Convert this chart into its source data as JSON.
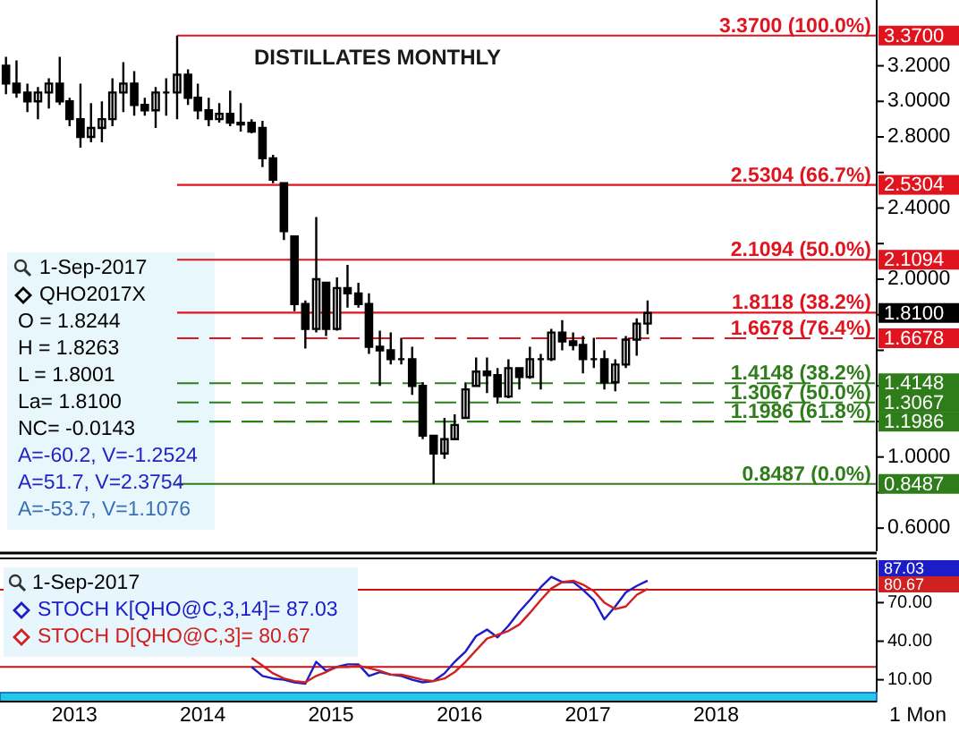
{
  "chart_data": [
    {
      "type": "candlestick",
      "title": "DISTILLATES MONTHLY",
      "color": "#000000",
      "x": [
        "2012-09",
        "2012-10",
        "2012-11",
        "2012-12",
        "2013-01",
        "2013-02",
        "2013-03",
        "2013-04",
        "2013-05",
        "2013-06",
        "2013-07",
        "2013-08",
        "2013-09",
        "2013-10",
        "2013-11",
        "2013-12",
        "2014-01",
        "2014-02",
        "2014-03",
        "2014-04",
        "2014-05",
        "2014-06",
        "2014-07",
        "2014-08",
        "2014-09",
        "2014-10",
        "2014-11",
        "2014-12",
        "2015-01",
        "2015-02",
        "2015-03",
        "2015-04",
        "2015-05",
        "2015-06",
        "2015-07",
        "2015-08",
        "2015-09",
        "2015-10",
        "2015-11",
        "2015-12",
        "2016-01",
        "2016-02",
        "2016-03",
        "2016-04",
        "2016-05",
        "2016-06",
        "2016-07",
        "2016-08",
        "2016-09",
        "2016-10",
        "2016-11",
        "2016-12",
        "2017-01",
        "2017-02",
        "2017-03",
        "2017-04",
        "2017-05",
        "2017-06",
        "2017-07",
        "2017-08",
        "2017-09"
      ],
      "ohlc": [
        [
          3.2,
          3.25,
          3.04,
          3.1
        ],
        [
          3.1,
          3.23,
          3.02,
          3.05
        ],
        [
          3.05,
          3.1,
          2.94,
          3.0
        ],
        [
          3.0,
          3.08,
          2.9,
          3.05
        ],
        [
          3.05,
          3.13,
          2.96,
          3.1
        ],
        [
          3.1,
          3.25,
          2.98,
          3.0
        ],
        [
          3.0,
          3.02,
          2.86,
          2.9
        ],
        [
          2.9,
          3.1,
          2.74,
          2.8
        ],
        [
          2.8,
          2.99,
          2.77,
          2.85
        ],
        [
          2.85,
          3.0,
          2.77,
          2.9
        ],
        [
          2.9,
          3.13,
          2.86,
          3.05
        ],
        [
          3.05,
          3.22,
          2.94,
          3.1
        ],
        [
          3.1,
          3.17,
          2.92,
          2.98
        ],
        [
          2.98,
          3.02,
          2.92,
          2.95
        ],
        [
          2.95,
          3.08,
          2.85,
          3.05
        ],
        [
          3.05,
          3.13,
          2.92,
          3.05
        ],
        [
          3.05,
          3.37,
          2.9,
          3.15
        ],
        [
          3.15,
          3.18,
          2.98,
          3.02
        ],
        [
          3.02,
          3.1,
          2.9,
          2.95
        ],
        [
          2.95,
          3.02,
          2.86,
          2.9
        ],
        [
          2.9,
          2.99,
          2.88,
          2.93
        ],
        [
          2.93,
          3.06,
          2.86,
          2.88
        ],
        [
          2.88,
          2.99,
          2.83,
          2.87
        ],
        [
          2.88,
          2.9,
          2.82,
          2.83
        ],
        [
          2.85,
          2.89,
          2.63,
          2.68
        ],
        [
          2.68,
          2.7,
          2.54,
          2.56
        ],
        [
          2.54,
          2.54,
          2.22,
          2.27
        ],
        [
          2.24,
          2.24,
          1.82,
          1.86
        ],
        [
          1.86,
          1.88,
          1.61,
          1.72
        ],
        [
          1.72,
          2.35,
          1.7,
          2.0
        ],
        [
          1.98,
          1.98,
          1.68,
          1.72
        ],
        [
          1.72,
          2.01,
          1.71,
          1.95
        ],
        [
          1.95,
          2.08,
          1.84,
          1.92
        ],
        [
          1.92,
          1.98,
          1.84,
          1.86
        ],
        [
          1.86,
          1.92,
          1.58,
          1.62
        ],
        [
          1.62,
          1.71,
          1.4,
          1.6
        ],
        [
          1.6,
          1.7,
          1.52,
          1.55
        ],
        [
          1.55,
          1.67,
          1.52,
          1.55
        ],
        [
          1.55,
          1.62,
          1.35,
          1.4
        ],
        [
          1.4,
          1.42,
          1.1,
          1.12
        ],
        [
          1.12,
          1.12,
          0.8487,
          1.02
        ],
        [
          1.02,
          1.22,
          0.99,
          1.1
        ],
        [
          1.1,
          1.24,
          1.1,
          1.18
        ],
        [
          1.22,
          1.42,
          1.22,
          1.38
        ],
        [
          1.4,
          1.56,
          1.4,
          1.48
        ],
        [
          1.48,
          1.56,
          1.36,
          1.46
        ],
        [
          1.46,
          1.5,
          1.3,
          1.34
        ],
        [
          1.34,
          1.55,
          1.33,
          1.5
        ],
        [
          1.5,
          1.5,
          1.38,
          1.45
        ],
        [
          1.45,
          1.62,
          1.44,
          1.55
        ],
        [
          1.55,
          1.58,
          1.38,
          1.55
        ],
        [
          1.55,
          1.72,
          1.54,
          1.7
        ],
        [
          1.7,
          1.77,
          1.6,
          1.65
        ],
        [
          1.65,
          1.7,
          1.6,
          1.63
        ],
        [
          1.63,
          1.68,
          1.47,
          1.55
        ],
        [
          1.55,
          1.67,
          1.5,
          1.55
        ],
        [
          1.55,
          1.6,
          1.38,
          1.42
        ],
        [
          1.42,
          1.55,
          1.37,
          1.52
        ],
        [
          1.52,
          1.68,
          1.5,
          1.66
        ],
        [
          1.66,
          1.78,
          1.57,
          1.75
        ],
        [
          1.75,
          1.88,
          1.69,
          1.81
        ]
      ],
      "xlim": [
        "2012-08-15",
        "2019-06-15"
      ],
      "ylim": [
        0.47,
        3.57
      ],
      "yticks": [
        {
          "value": 0.6,
          "label": "0.6000"
        },
        {
          "value": 0.8,
          "label": null
        },
        {
          "value": 1.0,
          "label": "1.0000"
        },
        {
          "value": 1.2,
          "label": null
        },
        {
          "value": 1.4,
          "label": null
        },
        {
          "value": 1.6,
          "label": null
        },
        {
          "value": 1.8,
          "label": null
        },
        {
          "value": 2.0,
          "label": "2.0000"
        },
        {
          "value": 2.2,
          "label": null
        },
        {
          "value": 2.4,
          "label": "2.4000"
        },
        {
          "value": 2.6,
          "label": null
        },
        {
          "value": 2.8,
          "label": "2.8000"
        },
        {
          "value": 3.0,
          "label": "3.0000"
        },
        {
          "value": 3.2,
          "label": "3.2000"
        }
      ],
      "tick_labels": "y",
      "ref_lines": [
        {
          "axis": "y",
          "value": 3.37,
          "label": "3.3700 (100.0%)",
          "color": "#e0141e",
          "line_style": "solid"
        },
        {
          "axis": "y",
          "value": 2.5304,
          "label": "2.5304 (66.7%)",
          "color": "#e0141e",
          "line_style": "solid"
        },
        {
          "axis": "y",
          "value": 2.1094,
          "label": "2.1094 (50.0%)",
          "color": "#e0141e",
          "line_style": "solid"
        },
        {
          "axis": "y",
          "value": 1.8118,
          "label": "1.8118 (38.2%)",
          "color": "#e0141e",
          "line_style": "solid"
        },
        {
          "axis": "y",
          "value": 1.6678,
          "label": "1.6678 (76.4%)",
          "color": "#e0141e",
          "line_style": "dashed"
        },
        {
          "axis": "y",
          "value": 1.4148,
          "label": "1.4148 (38.2%)",
          "color": "#2e7d1a",
          "line_style": "dashed"
        },
        {
          "axis": "y",
          "value": 1.3067,
          "label": "1.3067 (50.0%)",
          "color": "#2e7d1a",
          "line_style": "dashed"
        },
        {
          "axis": "y",
          "value": 1.1986,
          "label": "1.1986 (61.8%)",
          "color": "#2e7d1a",
          "line_style": "dashed"
        },
        {
          "axis": "y",
          "value": 0.8487,
          "label": "0.8487 (0.0%)",
          "color": "#2e7d1a",
          "line_style": "solid"
        }
      ],
      "y2lim": [
        0.47,
        3.57
      ],
      "y2ticks": [
        {
          "value": 3.37,
          "label": "3.3700"
        },
        {
          "value": 2.5304,
          "label": "2.5304"
        },
        {
          "value": 2.1094,
          "label": "2.1094"
        },
        {
          "value": 1.81,
          "label": "1.8100"
        },
        {
          "value": 1.6678,
          "label": "1.6678"
        },
        {
          "value": 1.4148,
          "label": "1.4148"
        },
        {
          "value": 1.3067,
          "label": "1.3067"
        },
        {
          "value": 1.1986,
          "label": "1.1986"
        },
        {
          "value": 0.8487,
          "label": "0.8487"
        }
      ],
      "annotations": [
        "1-Sep-2017",
        "QHO2017X",
        "O = 1.8244",
        "H = 1.8263",
        "L = 1.8001",
        "La= 1.8100",
        "NC= -0.0143",
        "A=-60.2, V=-1.2524",
        "A=51.7, V=2.3754",
        "A=-53.7, V=1.1076"
      ]
    },
    {
      "type": "line",
      "legend": "top left",
      "x": [
        "2014-08",
        "2014-09",
        "2014-10",
        "2014-11",
        "2014-12",
        "2015-01",
        "2015-02",
        "2015-03",
        "2015-04",
        "2015-05",
        "2015-06",
        "2015-07",
        "2015-08",
        "2015-09",
        "2015-10",
        "2015-11",
        "2015-12",
        "2016-01",
        "2016-02",
        "2016-03",
        "2016-04",
        "2016-05",
        "2016-06",
        "2016-07",
        "2016-08",
        "2016-09",
        "2016-10",
        "2016-11",
        "2016-12",
        "2017-01",
        "2017-02",
        "2017-03",
        "2017-04",
        "2017-05",
        "2017-06",
        "2017-07",
        "2017-08",
        "2017-09"
      ],
      "series": [
        {
          "name": "STOCH K[QHO@C,3,14]= 87.03",
          "color": "#1c1cc8",
          "values": [
            20,
            13,
            11,
            10,
            8,
            7,
            24,
            17,
            20,
            22,
            22,
            13,
            16,
            14,
            13,
            10,
            8,
            9,
            15,
            24,
            32,
            44,
            49,
            43,
            52,
            63,
            72,
            82,
            90,
            86,
            86,
            80,
            72,
            57,
            67,
            78,
            83,
            87.03
          ]
        },
        {
          "name": "STOCH D[QHO@C,3]= 80.67",
          "color": "#d02020",
          "values": [
            27,
            21,
            15,
            11,
            9,
            8,
            13,
            16,
            20,
            20,
            21,
            19,
            17,
            14,
            14,
            12,
            10,
            9,
            11,
            16,
            24,
            33,
            42,
            45,
            48,
            53,
            62,
            72,
            81,
            86,
            87,
            84,
            79,
            70,
            65,
            67,
            76,
            80.67
          ]
        }
      ],
      "xlim": [
        "2012-08-15",
        "2019-06-15"
      ],
      "xticks": [
        {
          "value": "2013-03-15",
          "label": "2013"
        },
        {
          "value": "2014-03-15",
          "label": "2014"
        },
        {
          "value": "2015-03-15",
          "label": "2015"
        },
        {
          "value": "2016-03-15",
          "label": "2016"
        },
        {
          "value": "2017-03-15",
          "label": "2017"
        },
        {
          "value": "2018-03-15",
          "label": "2018"
        }
      ],
      "ylim": [
        0,
        103
      ],
      "yticks": [
        {
          "value": 10,
          "label": "10.00"
        },
        {
          "value": 40,
          "label": "40.00"
        },
        {
          "value": 70,
          "label": "70.00"
        }
      ],
      "ref_lines": [
        {
          "axis": "y",
          "value": 80,
          "color": "#c81414"
        },
        {
          "axis": "y",
          "value": 20,
          "color": "#c81414"
        }
      ],
      "annotations": [
        "1-Sep-2017",
        "1 Mon",
        "87.03",
        "80.67"
      ]
    }
  ]
}
